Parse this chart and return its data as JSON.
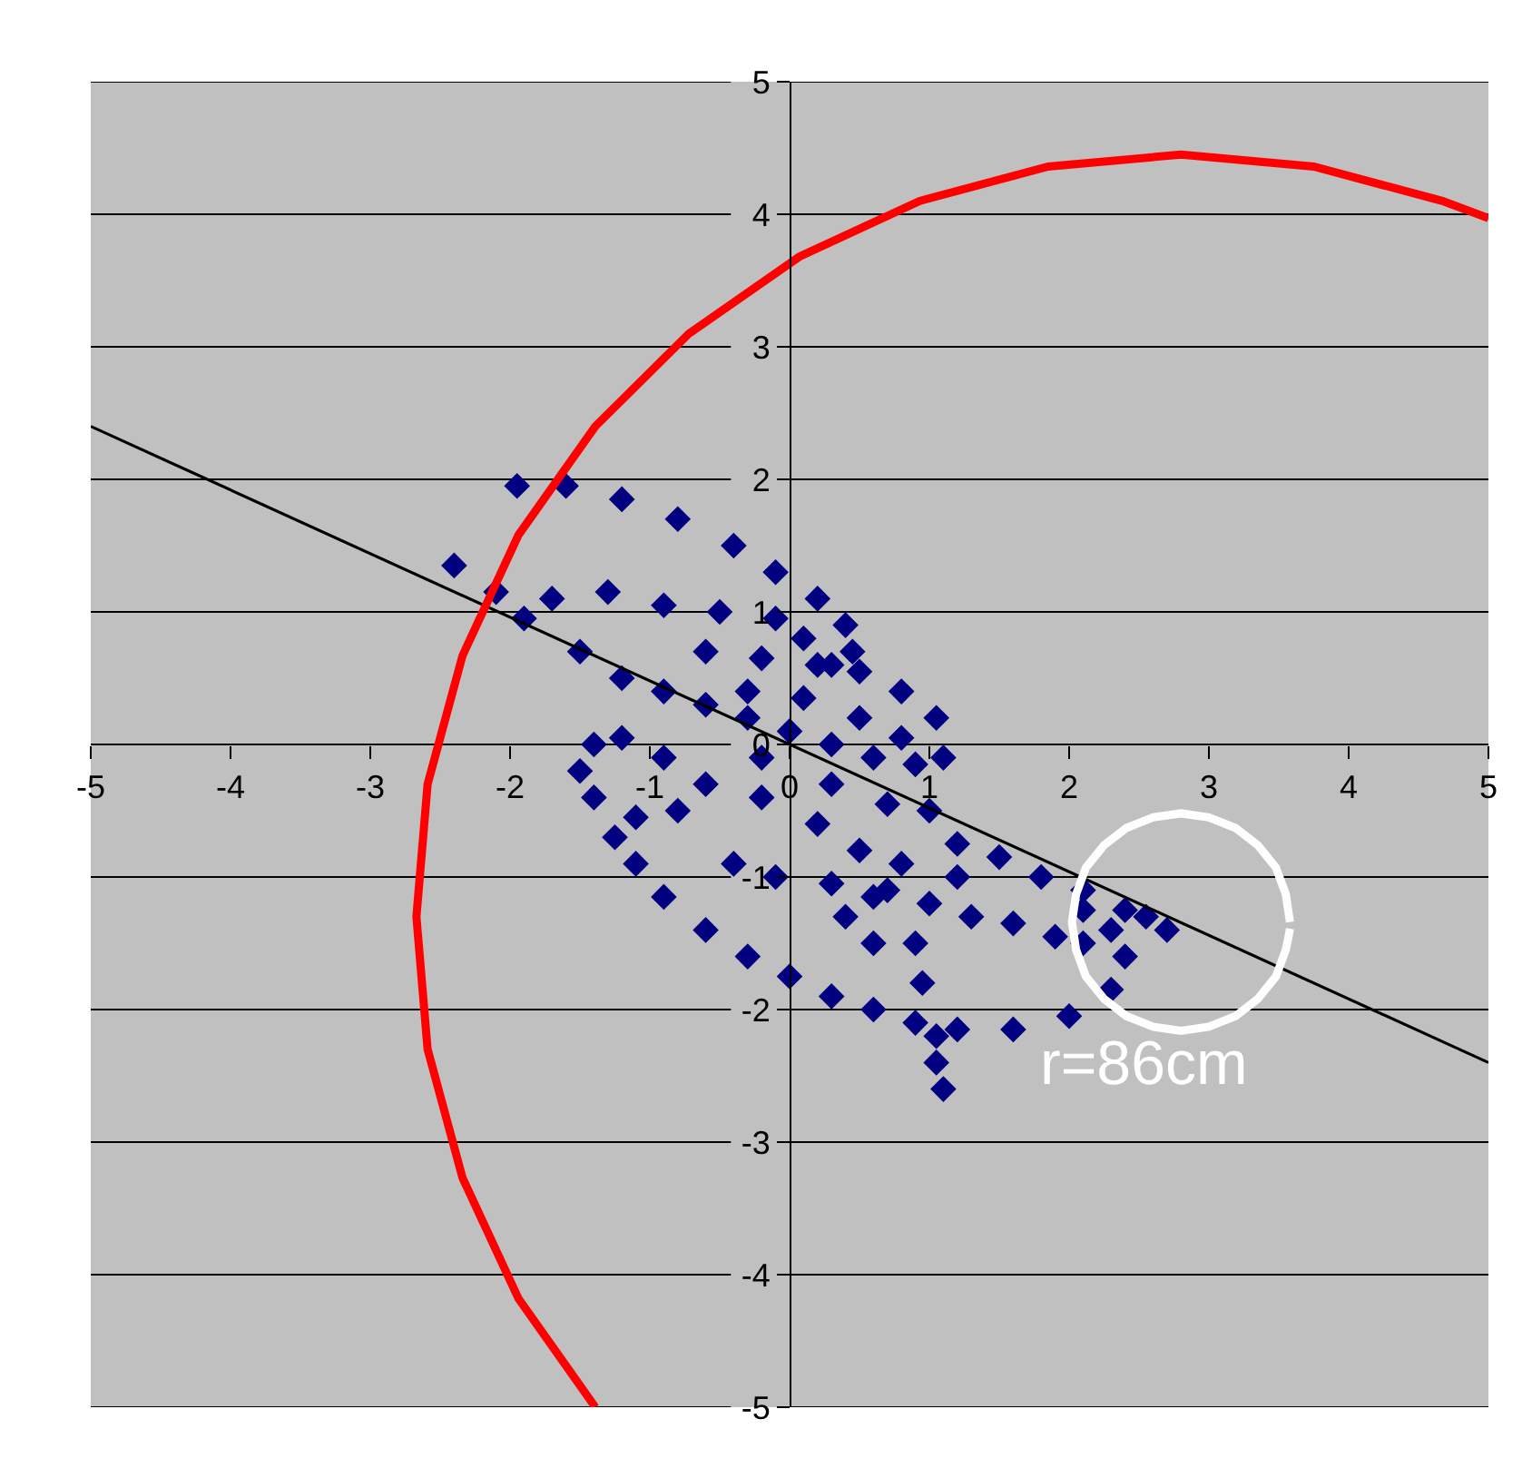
{
  "chart_data": {
    "type": "scatter",
    "xlim": [
      -5,
      5
    ],
    "ylim": [
      -5,
      5
    ],
    "xticks": [
      -5,
      -4,
      -3,
      -2,
      -1,
      0,
      1,
      2,
      3,
      4,
      5
    ],
    "yticks": [
      -5,
      -4,
      -3,
      -2,
      -1,
      0,
      1,
      2,
      3,
      4,
      5
    ],
    "grid": "y",
    "marker": "diamond",
    "annotations": [
      "r=86cm"
    ],
    "series": [
      {
        "color": "#000080",
        "x": [
          -1.95,
          -1.6,
          -1.2,
          -0.8,
          -0.4,
          -0.1,
          0.2,
          0.4,
          0.45,
          0.3,
          -2.4,
          -2.1,
          -1.7,
          -1.3,
          -0.9,
          -0.5,
          -0.1,
          0.1,
          -1.9,
          -1.5,
          -1.2,
          -0.9,
          -0.6,
          -0.3,
          0,
          0.3,
          0.6,
          0.9,
          1.1,
          1.05,
          0.8,
          0.5,
          0.2,
          -0.2,
          -0.6,
          -0.3,
          0.1,
          0.5,
          0.8,
          -0.2,
          0.3,
          0.7,
          1.0,
          0.2,
          -0.2,
          -1.4,
          -1.5,
          -1.4,
          -1.1,
          -0.8,
          -0.6,
          -0.9,
          -1.2,
          -1.25,
          -1.1,
          -0.9,
          -0.6,
          -0.3,
          0,
          0.3,
          0.6,
          0.9,
          1.2,
          1.6,
          2.0,
          2.3,
          2.4,
          2.3,
          2.1,
          -0.4,
          -0.1,
          0.3,
          0.7,
          1.0,
          1.3,
          1.6,
          1.9,
          2.1,
          1.2,
          1.5,
          1.8,
          2.1,
          2.4,
          2.7,
          2.55,
          0.5,
          0.8,
          1.2,
          0.6,
          0.4,
          0.6,
          1.05,
          1.05,
          1.1,
          0.9,
          0.95
        ],
        "values": [
          1.95,
          1.95,
          1.85,
          1.7,
          1.5,
          1.3,
          1.1,
          0.9,
          0.7,
          0.6,
          1.35,
          1.15,
          1.1,
          1.15,
          1.05,
          1.0,
          0.95,
          0.8,
          0.95,
          0.7,
          0.5,
          0.4,
          0.3,
          0.2,
          0.1,
          0,
          -0.1,
          -0.15,
          -0.1,
          0.2,
          0.4,
          0.55,
          0.6,
          0.65,
          0.7,
          0.4,
          0.35,
          0.2,
          0.05,
          -0.1,
          -0.3,
          -0.45,
          -0.5,
          -0.6,
          -0.4,
          0.0,
          -0.2,
          -0.4,
          -0.55,
          -0.5,
          -0.3,
          -0.1,
          0.05,
          -0.7,
          -0.9,
          -1.15,
          -1.4,
          -1.6,
          -1.75,
          -1.9,
          -2.0,
          -2.1,
          -2.15,
          -2.15,
          -2.05,
          -1.85,
          -1.6,
          -1.4,
          -1.25,
          -0.9,
          -1.0,
          -1.05,
          -1.1,
          -1.2,
          -1.3,
          -1.35,
          -1.45,
          -1.5,
          -0.75,
          -0.85,
          -1.0,
          -1.1,
          -1.25,
          -1.4,
          -1.3,
          -0.8,
          -0.9,
          -1.0,
          -1.5,
          -1.3,
          -1.15,
          -2.2,
          -2.4,
          -2.6,
          -1.5,
          -1.8
        ]
      },
      {
        "type": "line",
        "marker": "none",
        "color": "#000000",
        "x": [
          -5,
          5
        ],
        "values": [
          2.4,
          -2.4
        ]
      },
      {
        "type": "line",
        "marker": "none",
        "color": "#ff0000",
        "x": [
          5.0,
          4.67,
          3.75,
          2.8,
          1.85,
          0.93,
          0.07,
          -0.72,
          -1.39,
          -1.94,
          -2.34,
          -2.59,
          -2.67,
          -2.59,
          -2.34,
          -1.94,
          -1.39
        ],
        "values": [
          3.97,
          4.1,
          4.36,
          4.45,
          4.36,
          4.1,
          3.68,
          3.1,
          2.4,
          1.58,
          0.67,
          -0.3,
          -1.3,
          -2.3,
          -3.27,
          -4.18,
          -5.0
        ]
      },
      {
        "type": "line",
        "marker": "none",
        "color": "#fefefe",
        "x": [
          3.58,
          3.55,
          3.48,
          3.35,
          3.19,
          3.0,
          2.8,
          2.6,
          2.41,
          2.25,
          2.12,
          2.05,
          2.02,
          2.05,
          2.12,
          2.25,
          2.41,
          2.6,
          2.8,
          3.0,
          3.19,
          3.35,
          3.48,
          3.55,
          3.57,
          3.58
        ],
        "values": [
          -1.34,
          -1.13,
          -0.93,
          -0.76,
          -0.63,
          -0.55,
          -0.52,
          -0.55,
          -0.63,
          -0.76,
          -0.93,
          -1.13,
          -1.34,
          -1.55,
          -1.75,
          -1.92,
          -2.05,
          -2.13,
          -2.16,
          -2.13,
          -2.05,
          -1.92,
          -1.75,
          -1.55,
          -1.45,
          -1.39
        ]
      }
    ]
  }
}
